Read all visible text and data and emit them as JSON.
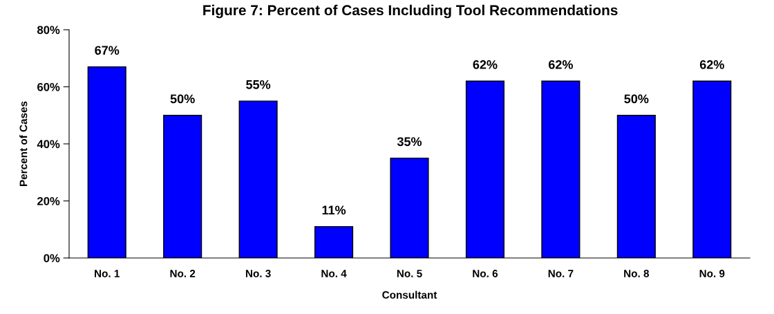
{
  "chart_data": {
    "type": "bar",
    "title": "Figure 7: Percent of Cases Including Tool Recommendations",
    "xlabel": "Consultant",
    "ylabel": "Percent of Cases",
    "categories": [
      "No. 1",
      "No. 2",
      "No. 3",
      "No. 4",
      "No. 5",
      "No. 6",
      "No. 7",
      "No. 8",
      "No. 9"
    ],
    "values": [
      67,
      50,
      55,
      11,
      35,
      62,
      62,
      50,
      62
    ],
    "value_labels": [
      "67%",
      "50%",
      "55%",
      "11%",
      "35%",
      "62%",
      "62%",
      "50%",
      "62%"
    ],
    "color": "#0000ff",
    "ylim": [
      0,
      80
    ],
    "yticks": [
      {
        "value": 0,
        "label": "0%"
      },
      {
        "value": 20,
        "label": "20%"
      },
      {
        "value": 40,
        "label": "40%"
      },
      {
        "value": 60,
        "label": "60%"
      },
      {
        "value": 80,
        "label": "80%"
      }
    ],
    "grid": false
  }
}
